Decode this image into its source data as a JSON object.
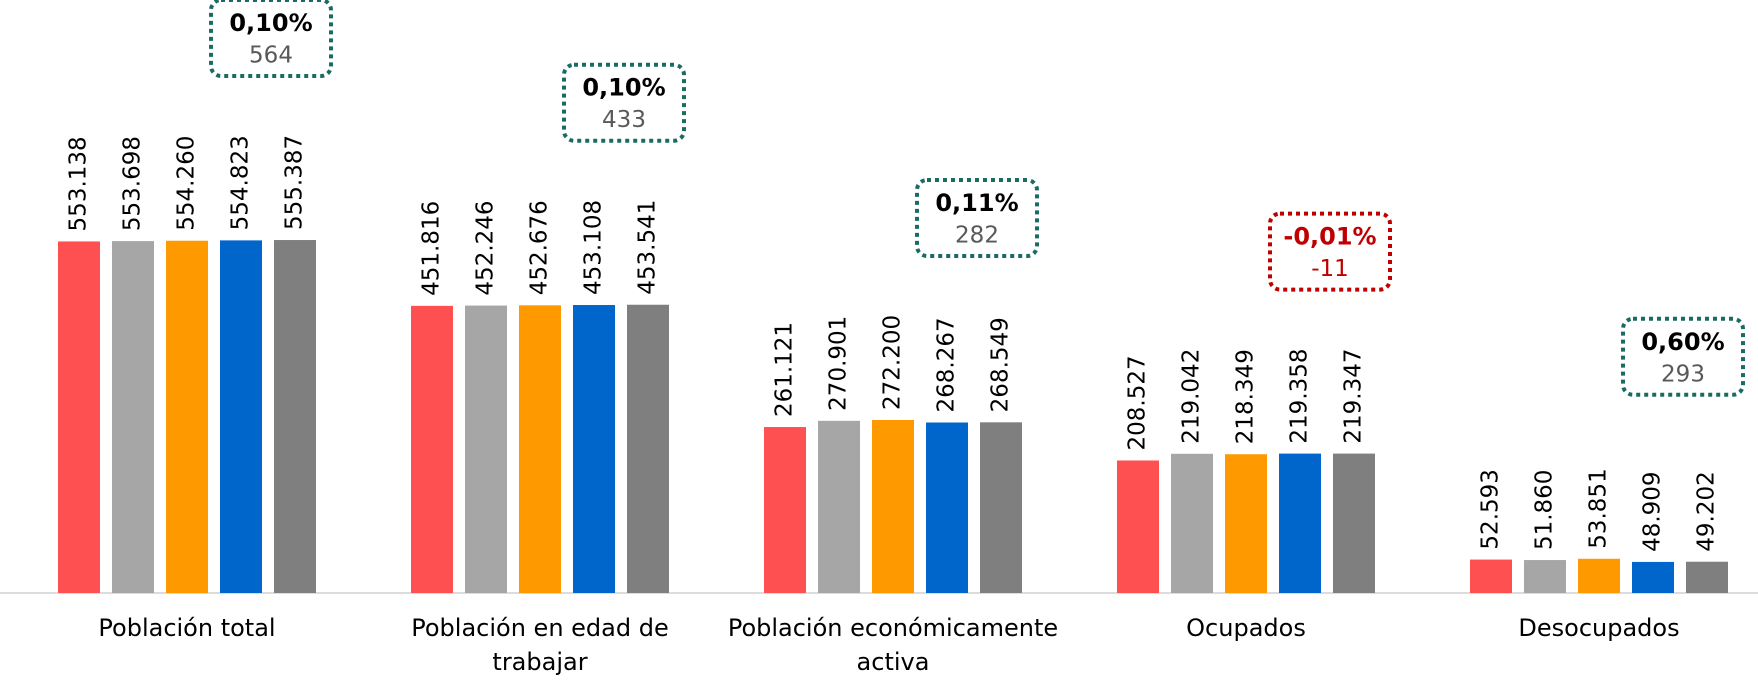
{
  "chart_data": {
    "type": "bar",
    "categories": [
      "Población total",
      "Población en edad de trabajar",
      "Población económicamente activa",
      "Ocupados",
      "Desocupados"
    ],
    "series": [
      {
        "color": "#fe5050",
        "values": [
          553138,
          451816,
          261121,
          208527,
          52593
        ],
        "value_labels": [
          "553.138",
          "451.816",
          "261.121",
          "208.527",
          "52.593"
        ]
      },
      {
        "color": "#a6a6a6",
        "values": [
          553698,
          452246,
          270901,
          219042,
          51860
        ],
        "value_labels": [
          "553.698",
          "452.246",
          "270.901",
          "219.042",
          "51.860"
        ]
      },
      {
        "color": "#ff9900",
        "values": [
          554260,
          452676,
          272200,
          218349,
          53851
        ],
        "value_labels": [
          "554.260",
          "452.676",
          "272.200",
          "218.349",
          "53.851"
        ]
      },
      {
        "color": "#0066cc",
        "values": [
          554823,
          453108,
          268267,
          219358,
          48909
        ],
        "value_labels": [
          "554.823",
          "453.108",
          "268.267",
          "219.358",
          "48.909"
        ]
      },
      {
        "color": "#7f7f7f",
        "values": [
          555387,
          453541,
          268549,
          219347,
          49202
        ],
        "value_labels": [
          "555.387",
          "453.541",
          "268.549",
          "219.347",
          "49.202"
        ]
      }
    ],
    "annotations": [
      {
        "pct": "0,10%",
        "diff": 564,
        "color": "#1a6b63",
        "pct_color": "#000000",
        "diff_color": "#595959"
      },
      {
        "pct": "0,10%",
        "diff": 433,
        "color": "#1a6b63",
        "pct_color": "#000000",
        "diff_color": "#595959"
      },
      {
        "pct": "0,11%",
        "diff": 282,
        "color": "#1a6b63",
        "pct_color": "#000000",
        "diff_color": "#595959"
      },
      {
        "pct": "-0,01%",
        "diff": -11,
        "color": "#c00000",
        "pct_color": "#c00000",
        "diff_color": "#c00000"
      },
      {
        "pct": "0,60%",
        "diff": 293,
        "color": "#1a6b63",
        "pct_color": "#000000",
        "diff_color": "#595959"
      }
    ],
    "ylim": [
      0,
      900000
    ]
  }
}
